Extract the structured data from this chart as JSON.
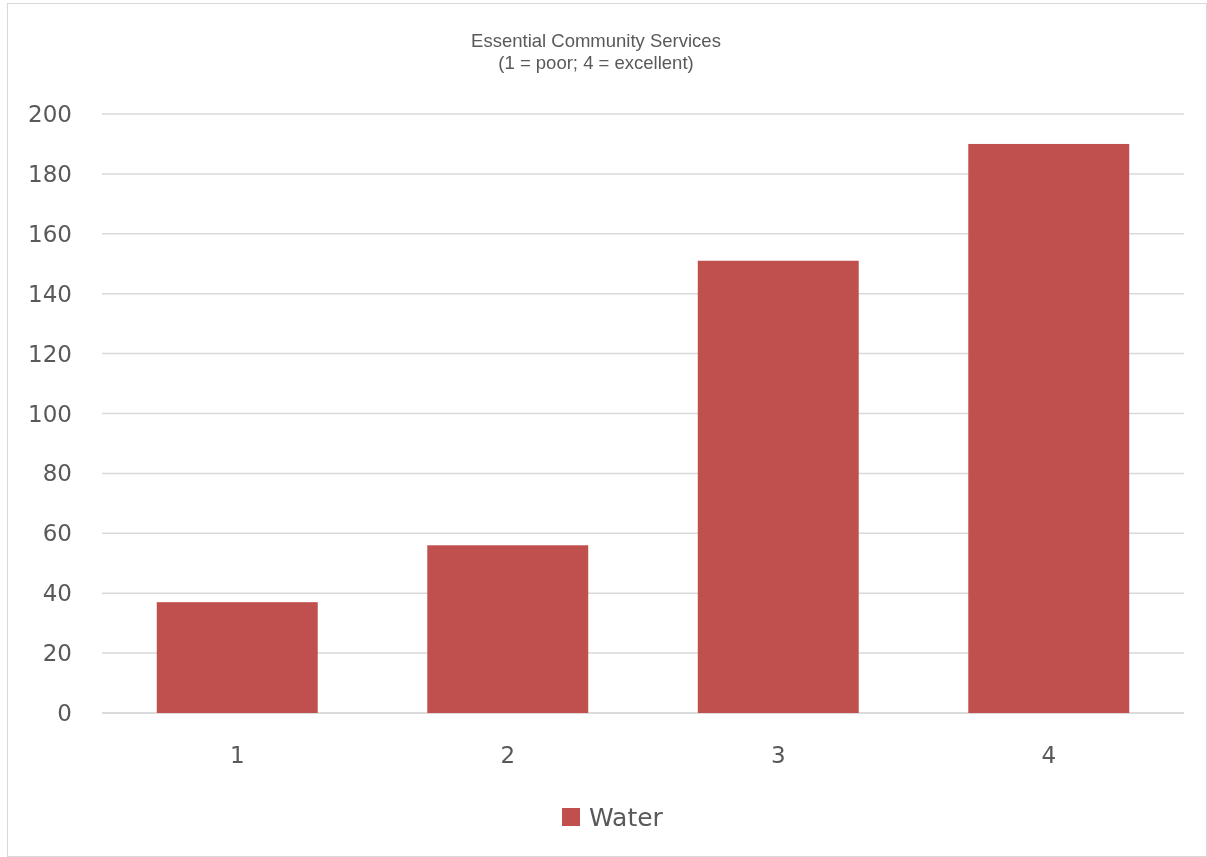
{
  "chart_data": {
    "type": "bar",
    "title": "Essential Community Services\n(1 = poor; 4 = excellent)",
    "categories": [
      "1",
      "2",
      "3",
      "4"
    ],
    "series": [
      {
        "name": "Water",
        "color": "#c0504d",
        "values": [
          37,
          56,
          151,
          190
        ]
      }
    ],
    "ylim": [
      0,
      200
    ],
    "yticks": [
      0,
      20,
      40,
      60,
      80,
      100,
      120,
      140,
      160,
      180,
      200
    ],
    "grid": "y",
    "legend": "bottom"
  }
}
